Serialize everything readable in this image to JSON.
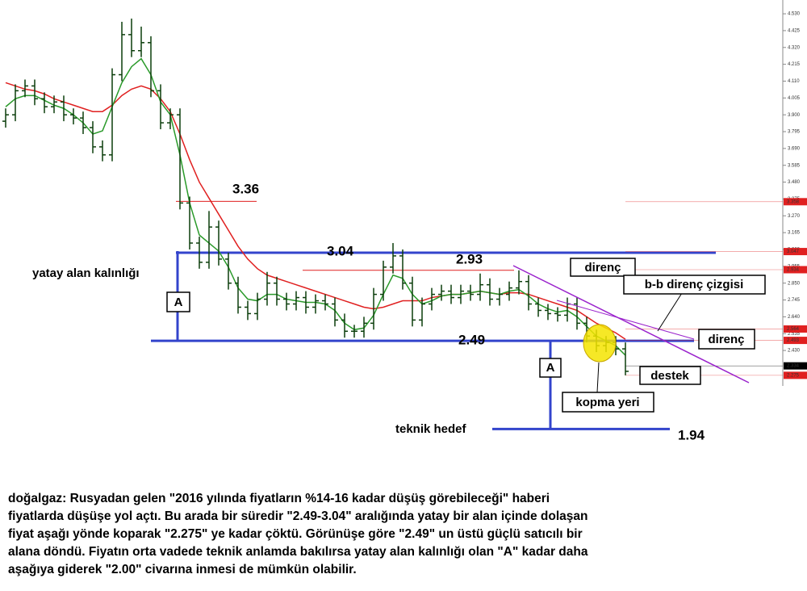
{
  "chart_data": {
    "type": "ohlc",
    "color": "#0b3d0b",
    "ylim": [
      2.224,
      4.616
    ],
    "yticks": [
      {
        "value": 4.53,
        "label": "4.530"
      },
      {
        "value": 4.425,
        "label": "4.425"
      },
      {
        "value": 4.32,
        "label": "4.320"
      },
      {
        "value": 4.215,
        "label": "4.215"
      },
      {
        "value": 4.11,
        "label": "4.110"
      },
      {
        "value": 4.005,
        "label": "4.005"
      },
      {
        "value": 3.9,
        "label": "3.900"
      },
      {
        "value": 3.795,
        "label": "3.795"
      },
      {
        "value": 3.69,
        "label": "3.690"
      },
      {
        "value": 3.585,
        "label": "3.585"
      },
      {
        "value": 3.48,
        "label": "3.480"
      },
      {
        "value": 3.375,
        "label": "3.375"
      },
      {
        "value": 3.27,
        "label": "3.270"
      },
      {
        "value": 3.165,
        "label": "3.165"
      },
      {
        "value": 3.06,
        "label": "3.060"
      },
      {
        "value": 2.955,
        "label": "2.955"
      },
      {
        "value": 2.85,
        "label": "2.850"
      },
      {
        "value": 2.745,
        "label": "2.745"
      },
      {
        "value": 2.64,
        "label": "2.640"
      },
      {
        "value": 2.535,
        "label": "2.535"
      },
      {
        "value": 2.43,
        "label": "2.430"
      }
    ],
    "candles": [
      [
        3.86,
        3.94,
        3.82,
        3.9
      ],
      [
        3.9,
        4.09,
        3.86,
        4.05
      ],
      [
        4.05,
        4.12,
        4.01,
        4.08
      ],
      [
        4.08,
        4.12,
        3.96,
        4.0
      ],
      [
        4.0,
        4.04,
        3.91,
        3.95
      ],
      [
        3.95,
        4.02,
        3.91,
        3.98
      ],
      [
        3.98,
        4.02,
        3.86,
        3.9
      ],
      [
        3.9,
        3.94,
        3.84,
        3.88
      ],
      [
        3.88,
        3.92,
        3.78,
        3.82
      ],
      [
        3.82,
        3.86,
        3.66,
        3.7
      ],
      [
        3.7,
        3.74,
        3.61,
        3.65
      ],
      [
        3.65,
        4.19,
        3.61,
        4.15
      ],
      [
        4.15,
        4.48,
        4.11,
        4.4
      ],
      [
        4.4,
        4.5,
        4.26,
        4.3
      ],
      [
        4.3,
        4.45,
        4.26,
        4.35
      ],
      [
        4.35,
        4.39,
        4.01,
        4.05
      ],
      [
        4.05,
        4.09,
        3.81,
        3.85
      ],
      [
        3.85,
        3.94,
        3.81,
        3.9
      ],
      [
        3.9,
        3.94,
        3.31,
        3.35
      ],
      [
        3.35,
        3.39,
        3.06,
        3.1
      ],
      [
        3.1,
        3.14,
        2.94,
        2.98
      ],
      [
        2.98,
        3.3,
        2.94,
        3.2
      ],
      [
        3.2,
        3.24,
        2.96,
        3.0
      ],
      [
        3.0,
        3.04,
        2.81,
        2.85
      ],
      [
        2.85,
        2.89,
        2.66,
        2.7
      ],
      [
        2.7,
        2.74,
        2.62,
        2.66
      ],
      [
        2.66,
        2.79,
        2.62,
        2.75
      ],
      [
        2.75,
        2.92,
        2.71,
        2.85
      ],
      [
        2.85,
        2.89,
        2.71,
        2.75
      ],
      [
        2.75,
        2.79,
        2.68,
        2.72
      ],
      [
        2.72,
        2.8,
        2.68,
        2.76
      ],
      [
        2.76,
        2.8,
        2.66,
        2.7
      ],
      [
        2.7,
        2.78,
        2.66,
        2.74
      ],
      [
        2.74,
        2.78,
        2.68,
        2.72
      ],
      [
        2.72,
        2.76,
        2.58,
        2.62
      ],
      [
        2.62,
        2.66,
        2.51,
        2.55
      ],
      [
        2.55,
        2.59,
        2.51,
        2.55
      ],
      [
        2.55,
        2.64,
        2.51,
        2.6
      ],
      [
        2.6,
        2.82,
        2.56,
        2.78
      ],
      [
        2.78,
        2.99,
        2.74,
        2.95
      ],
      [
        2.95,
        3.1,
        2.91,
        3.02
      ],
      [
        3.02,
        3.06,
        2.81,
        2.85
      ],
      [
        2.85,
        2.89,
        2.58,
        2.62
      ],
      [
        2.62,
        2.76,
        2.58,
        2.72
      ],
      [
        2.72,
        2.82,
        2.68,
        2.78
      ],
      [
        2.78,
        2.84,
        2.74,
        2.8
      ],
      [
        2.8,
        2.84,
        2.72,
        2.76
      ],
      [
        2.76,
        2.84,
        2.72,
        2.8
      ],
      [
        2.8,
        2.84,
        2.74,
        2.78
      ],
      [
        2.78,
        2.91,
        2.74,
        2.84
      ],
      [
        2.84,
        2.88,
        2.71,
        2.75
      ],
      [
        2.75,
        2.82,
        2.71,
        2.78
      ],
      [
        2.78,
        2.86,
        2.74,
        2.82
      ],
      [
        2.82,
        2.93,
        2.78,
        2.86
      ],
      [
        2.86,
        2.9,
        2.68,
        2.72
      ],
      [
        2.72,
        2.76,
        2.64,
        2.68
      ],
      [
        2.68,
        2.72,
        2.62,
        2.66
      ],
      [
        2.66,
        2.7,
        2.61,
        2.65
      ],
      [
        2.65,
        2.76,
        2.61,
        2.72
      ],
      [
        2.72,
        2.76,
        2.56,
        2.6
      ],
      [
        2.6,
        2.64,
        2.48,
        2.52
      ],
      [
        2.52,
        2.56,
        2.42,
        2.46
      ],
      [
        2.46,
        2.52,
        2.42,
        2.48
      ],
      [
        2.48,
        2.52,
        2.4,
        2.44
      ],
      [
        2.44,
        2.48,
        2.275,
        2.3
      ]
    ],
    "series": [
      {
        "color": "#e02020",
        "values": [
          4.1,
          4.08,
          4.06,
          4.05,
          4.03,
          4.0,
          3.98,
          3.96,
          3.94,
          3.92,
          3.92,
          3.96,
          4.02,
          4.06,
          4.08,
          4.06,
          4.0,
          3.92,
          3.78,
          3.62,
          3.48,
          3.38,
          3.28,
          3.18,
          3.08,
          3.0,
          2.94,
          2.9,
          2.88,
          2.86,
          2.84,
          2.82,
          2.8,
          2.78,
          2.76,
          2.74,
          2.72,
          2.7,
          2.69,
          2.7,
          2.72,
          2.74,
          2.74,
          2.74,
          2.76,
          2.77,
          2.78,
          2.78,
          2.79,
          2.8,
          2.79,
          2.78,
          2.79,
          2.79,
          2.78,
          2.76,
          2.74,
          2.72,
          2.7,
          2.68,
          2.64,
          2.6,
          2.57,
          2.54,
          2.5
        ]
      },
      {
        "color": "#2a9a2a",
        "values": [
          3.95,
          4.0,
          4.02,
          4.02,
          3.99,
          3.96,
          3.94,
          3.9,
          3.85,
          3.78,
          3.8,
          3.95,
          4.1,
          4.2,
          4.25,
          4.15,
          3.98,
          3.9,
          3.65,
          3.35,
          3.15,
          3.1,
          3.05,
          2.95,
          2.82,
          2.75,
          2.74,
          2.78,
          2.78,
          2.75,
          2.74,
          2.73,
          2.73,
          2.72,
          2.68,
          2.6,
          2.56,
          2.57,
          2.65,
          2.78,
          2.9,
          2.88,
          2.78,
          2.72,
          2.74,
          2.77,
          2.78,
          2.78,
          2.79,
          2.8,
          2.79,
          2.78,
          2.8,
          2.81,
          2.77,
          2.72,
          2.69,
          2.67,
          2.68,
          2.64,
          2.58,
          2.52,
          2.49,
          2.46,
          2.4
        ]
      }
    ],
    "levels": [
      {
        "value": 3.36,
        "color": "#e02020"
      },
      {
        "value": 3.04,
        "color": "#3344cc"
      },
      {
        "value": 2.93,
        "color": "#e02020"
      },
      {
        "value": 2.49,
        "color": "#3344cc"
      },
      {
        "value": 1.94,
        "color": "#3344cc"
      }
    ],
    "price_markers": [
      {
        "value": 3.358,
        "color": "#e02020"
      },
      {
        "value": 3.047,
        "color": "#e02020"
      },
      {
        "value": 2.934,
        "color": "#e02020"
      },
      {
        "value": 2.564,
        "color": "#e02020"
      },
      {
        "value": 2.493,
        "color": "#e02020"
      },
      {
        "value": 2.334,
        "color": "#000000"
      },
      {
        "value": 2.275,
        "color": "#e02020"
      }
    ],
    "thickness_label": "yatay alan kalınlığı",
    "measure_labels": [
      "A",
      "A"
    ],
    "callouts": [
      "direnç",
      "b-b direnç çizgisi",
      "direnç",
      "destek",
      "kopma yeri"
    ],
    "target_label": "teknik hedef"
  },
  "caption": [
    "doğalgaz: Rusyadan gelen \"2016 yılında fiyatların %14-16 kadar düşüş görebileceği\" haberi",
    "fiyatlarda düşüşe yol açtı. Bu arada bir süredir \"2.49-3.04\" aralığında yatay bir alan içinde dolaşan",
    "fiyat aşağı yönde koparak \"2.275\" ye kadar çöktü. Görünüşe göre \"2.49\" un üstü güçlü satıcılı bir",
    "alana döndü. Fiyatın orta vadede teknik anlamda bakılırsa yatay alan kalınlığı olan \"A\" kadar daha",
    "aşağıya giderek \"2.00\" civarına inmesi de mümkün olabilir."
  ]
}
